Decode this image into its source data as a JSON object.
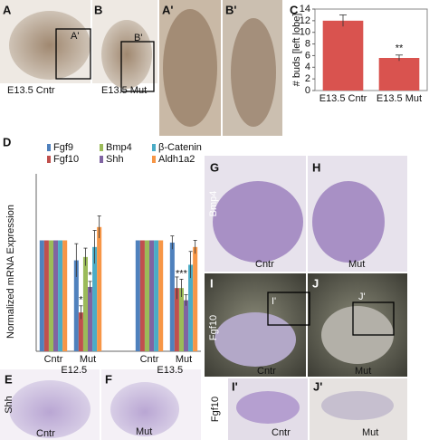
{
  "panels": {
    "A": {
      "label": "A",
      "caption": "E13.5 Cntr",
      "box_label": "A'"
    },
    "B": {
      "label": "B",
      "caption": "E13.5 Mut",
      "box_label": "B'"
    },
    "A2": {
      "label": "A'"
    },
    "B2": {
      "label": "B'"
    },
    "C": {
      "label": "C"
    },
    "D": {
      "label": "D"
    },
    "E": {
      "label": "E",
      "caption": "Cntr"
    },
    "F": {
      "label": "F",
      "caption": "Mut"
    },
    "G": {
      "label": "G",
      "caption": "Cntr"
    },
    "H": {
      "label": "H",
      "caption": "Mut"
    },
    "I": {
      "label": "I",
      "caption": "Cntr",
      "box_label": "I'"
    },
    "J": {
      "label": "J",
      "caption": "Mut",
      "box_label": "J'"
    },
    "I2": {
      "label": "I'",
      "caption": "Cntr"
    },
    "J2": {
      "label": "J'",
      "caption": "Mut"
    }
  },
  "row_labels": {
    "shh": "Shh",
    "bmp4": "Bmp4",
    "fgf10": "Fgf10",
    "fgf10_zoom": "Fgf10"
  },
  "chart_data": [
    {
      "type": "bar",
      "ylabel": "# buds [left lobe]",
      "categories": [
        "E13.5 Cntr",
        "E13.5 Mut"
      ],
      "values": [
        12,
        5.6
      ],
      "errors": [
        1,
        0.5
      ],
      "color": "#d9534f",
      "ylim": [
        0,
        14
      ],
      "yticks": [
        0,
        2,
        4,
        6,
        8,
        10,
        12,
        14
      ],
      "annotations": [
        {
          "index": 1,
          "text": "**"
        }
      ]
    },
    {
      "type": "grouped_bar",
      "ylabel": "Normalized mRNA Expression",
      "categories": [
        "Cntr",
        "Mut",
        "Cntr",
        "Mut"
      ],
      "groups": [
        "E12.5",
        "E13.5"
      ],
      "ylim": [
        0,
        1.6
      ],
      "series": [
        {
          "name": "Fgf9",
          "color": "#4f81bd",
          "values": [
            1,
            0.82,
            1,
            0.98
          ],
          "errors": [
            0,
            0.15,
            0,
            0.06
          ]
        },
        {
          "name": "Fgf10",
          "color": "#c0504d",
          "values": [
            1,
            0.35,
            1,
            0.57
          ],
          "errors": [
            0,
            0.06,
            0,
            0.1
          ]
        },
        {
          "name": "Bmp4",
          "color": "#9bbb59",
          "values": [
            1,
            0.85,
            1,
            0.57
          ],
          "errors": [
            0,
            0.08,
            0,
            0.08
          ]
        },
        {
          "name": "Shh",
          "color": "#8064a2",
          "values": [
            1,
            0.58,
            1,
            0.46
          ],
          "errors": [
            0,
            0.05,
            0,
            0.05
          ]
        },
        {
          "name": "β-Catenin",
          "color": "#4bacc6",
          "values": [
            1,
            0.94,
            1,
            0.78
          ],
          "errors": [
            0,
            0.15,
            0,
            0.12
          ]
        },
        {
          "name": "Aldh1a2",
          "color": "#f79646",
          "values": [
            1,
            1.12,
            1,
            0.94
          ],
          "errors": [
            0,
            0.1,
            0,
            0.06
          ]
        }
      ],
      "annotations": [
        {
          "category": 1,
          "series": 1,
          "text": "*"
        },
        {
          "category": 1,
          "series": 3,
          "text": "*"
        },
        {
          "category": 3,
          "series": 2,
          "text": "***"
        }
      ]
    }
  ]
}
